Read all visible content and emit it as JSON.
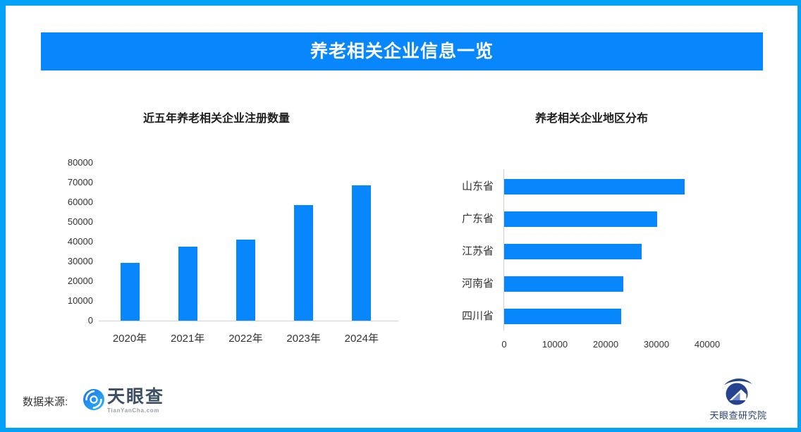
{
  "header": {
    "title": "养老相关企业信息一览"
  },
  "chart_data": [
    {
      "type": "bar",
      "title": "近五年养老相关企业注册数量",
      "categories": [
        "2020年",
        "2021年",
        "2022年",
        "2023年",
        "2024年"
      ],
      "values": [
        29400,
        37400,
        41000,
        58500,
        68500
      ],
      "ylabel": "",
      "xlabel": "",
      "ylim": [
        0,
        80000
      ],
      "yticks": [
        0,
        10000,
        20000,
        30000,
        40000,
        50000,
        60000,
        70000,
        80000
      ],
      "grid": false,
      "legend": "none"
    },
    {
      "type": "bar-horizontal",
      "title": "养老相关企业地区分布",
      "categories": [
        "山东省",
        "广东省",
        "江苏省",
        "河南省",
        "四川省"
      ],
      "values": [
        35500,
        30200,
        27100,
        23500,
        23000
      ],
      "ylabel": "",
      "xlabel": "",
      "xlim": [
        0,
        56800
      ],
      "xticks": [
        0,
        10000,
        20000,
        30000,
        40000
      ],
      "grid": false,
      "legend": "none"
    }
  ],
  "footer": {
    "source_label": "数据来源:",
    "tyc_logo_text": "天眼查",
    "tyc_logo_sub": "TianYanCha.com",
    "institute_logo_text": "天眼查研究院"
  },
  "colors": {
    "accent_bar": "#0787fb",
    "banner_bg": "#0787fb",
    "frame_border": "#05a1f6",
    "axis_line": "#d1d1d1",
    "tick_text": "#333333",
    "title_text": "#1f1f1f",
    "tyc_text": "#3e4f63",
    "tyc_sub_text": "#98a0a8",
    "institute_navy": "#26438f",
    "institute_text": "#2b4372"
  }
}
